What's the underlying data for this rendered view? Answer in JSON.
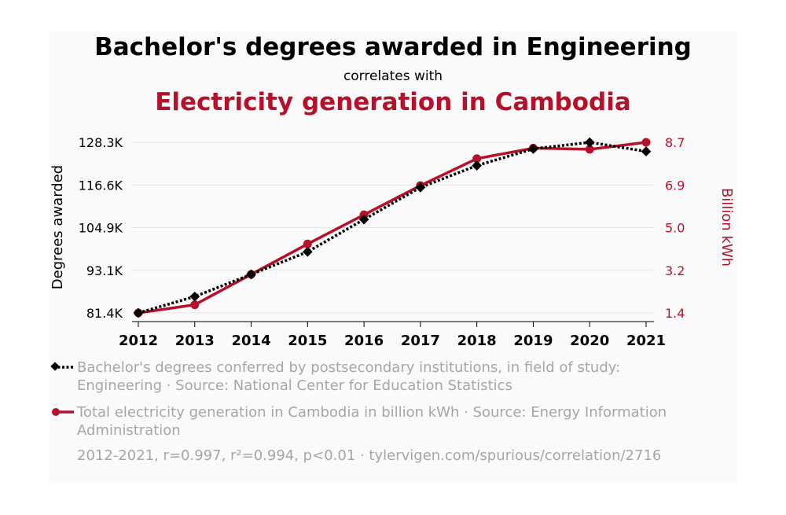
{
  "title": "Bachelor's degrees awarded in Engineering",
  "subtitle": "correlates with",
  "title2": "Electricity generation in Cambodia",
  "colors": {
    "series1": "#000000",
    "series2": "#b5112b",
    "legend_text": "#a6a6a6"
  },
  "chart_data": {
    "type": "line",
    "x": [
      2012,
      2013,
      2014,
      2015,
      2016,
      2017,
      2018,
      2019,
      2020,
      2021
    ],
    "ylabel_left": "Degrees awarded",
    "ylabel_right": "Billion kWh",
    "yticks_left": [
      "81.4K",
      "93.1K",
      "104.9K",
      "116.6K",
      "128.3K"
    ],
    "yticks_right": [
      "1.4",
      "3.2",
      "5.0",
      "6.9",
      "8.7"
    ],
    "ylim_left": [
      81400,
      128300
    ],
    "ylim_right": [
      1.4,
      8.7
    ],
    "series": [
      {
        "axis": "left",
        "marker": "diamond",
        "style": "dotted",
        "values": [
          81400,
          85900,
          92000,
          98200,
          107100,
          115900,
          121900,
          126500,
          128300,
          125800
        ]
      },
      {
        "axis": "right",
        "marker": "circle",
        "style": "solid",
        "values": [
          1.4,
          1.75,
          3.05,
          4.35,
          5.6,
          6.85,
          8.0,
          8.45,
          8.4,
          8.7
        ]
      }
    ]
  },
  "legend": [
    {
      "text": "Bachelor's degrees conferred by postsecondary institutions, in field of study: Engineering · Source: National Center for Education Statistics"
    },
    {
      "text": "Total electricity generation in Cambodia in billion kWh · Source: Energy Information Administration"
    }
  ],
  "footer": "2012-2021, r=0.997, r²=0.994, p<0.01 · tylervigen.com/spurious/correlation/2716"
}
